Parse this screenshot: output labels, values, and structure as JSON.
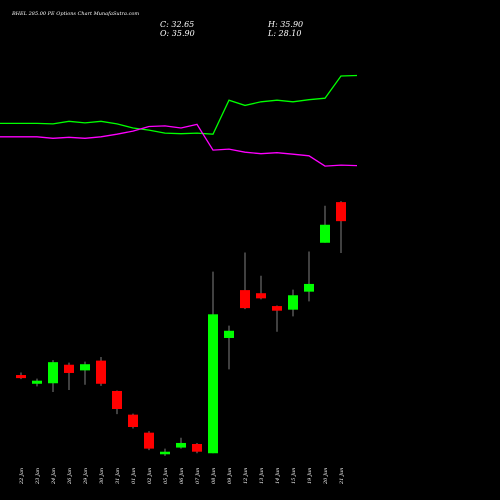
{
  "chart_data": {
    "type": "candlestick",
    "title": "BHEL 285.00 PE Options Chart MunafaSutra.com",
    "ohlc_readout": {
      "C": "C: 32.65",
      "O": "O: 35.90",
      "H": "H: 35.90",
      "L": "L: 28.10"
    },
    "categories": [
      "22 Jan",
      "23 Jan",
      "24 Jan",
      "26 Jan",
      "29 Jan",
      "30 Jan",
      "31 Jan",
      "01 Jun",
      "02 Jun",
      "05 Jun",
      "06 Jun",
      "07 Jun",
      "08 Jun",
      "09 Jun",
      "12 Jun",
      "13 Jun",
      "14 Jun",
      "15 Jun",
      "19 Jun",
      "20 Jun",
      "21 Jun"
    ],
    "candles": [
      {
        "o": 6.9,
        "c": 6.3,
        "h": 7.4,
        "l": 6.1
      },
      {
        "o": 5.2,
        "c": 5.8,
        "h": 6.2,
        "l": 4.7
      },
      {
        "o": 5.3,
        "c": 9.4,
        "h": 9.8,
        "l": 3.6
      },
      {
        "o": 8.9,
        "c": 7.3,
        "h": 9.3,
        "l": 4.0
      },
      {
        "o": 7.8,
        "c": 9.0,
        "h": 9.5,
        "l": 5.0
      },
      {
        "o": 9.7,
        "c": 5.2,
        "h": 10.4,
        "l": 4.8
      },
      {
        "o": 3.8,
        "c": 0.3,
        "h": 3.9,
        "l": -0.7
      },
      {
        "o": -0.8,
        "c": -3.2,
        "h": -0.6,
        "l": -3.5
      },
      {
        "o": -4.3,
        "c": -7.4,
        "h": -4.0,
        "l": -7.7
      },
      {
        "o": -8.5,
        "c": -8.0,
        "h": -7.4,
        "l": -8.8
      },
      {
        "o": -7.2,
        "c": -6.3,
        "h": -5.3,
        "l": -7.4
      },
      {
        "o": -6.5,
        "c": -8.0,
        "h": -6.3,
        "l": -8.3
      },
      {
        "o": -8.3,
        "c": 18.7,
        "h": 27.0,
        "l": -8.3
      },
      {
        "o": 14.1,
        "c": 15.5,
        "h": 16.5,
        "l": 8.0
      },
      {
        "o": 23.4,
        "c": 19.9,
        "h": 30.7,
        "l": 19.7
      },
      {
        "o": 22.8,
        "c": 21.8,
        "h": 26.2,
        "l": 21.6
      },
      {
        "o": 20.3,
        "c": 19.4,
        "h": 20.4,
        "l": 15.3
      },
      {
        "o": 19.6,
        "c": 22.4,
        "h": 23.5,
        "l": 18.3
      },
      {
        "o": 23.1,
        "c": 24.6,
        "h": 30.9,
        "l": 21.2
      },
      {
        "o": 32.6,
        "c": 36.1,
        "h": 39.8,
        "l": 32.6
      },
      {
        "o": 40.5,
        "c": 36.8,
        "h": 40.7,
        "l": 30.6
      }
    ],
    "series": [
      {
        "color": "#00ff00",
        "values": [
          55.8,
          55.8,
          55.7,
          56.2,
          55.9,
          56.2,
          55.7,
          54.9,
          54.5,
          53.9,
          53.8,
          53.9,
          53.7,
          60.3,
          59.3,
          60.0,
          60.3,
          60.0,
          60.4,
          60.7,
          65.0
        ]
      },
      {
        "color": "#ff00ff",
        "values": [
          53.2,
          53.2,
          52.9,
          53.1,
          52.9,
          53.2,
          53.7,
          54.3,
          55.2,
          55.3,
          54.9,
          55.6,
          50.6,
          50.8,
          50.2,
          49.9,
          50.1,
          49.8,
          49.5,
          47.5,
          47.7
        ]
      }
    ],
    "ylim": [
      -10,
      72
    ],
    "up_color": "#00ff00",
    "down_color": "#ff0000",
    "wick_color": "#808080"
  }
}
